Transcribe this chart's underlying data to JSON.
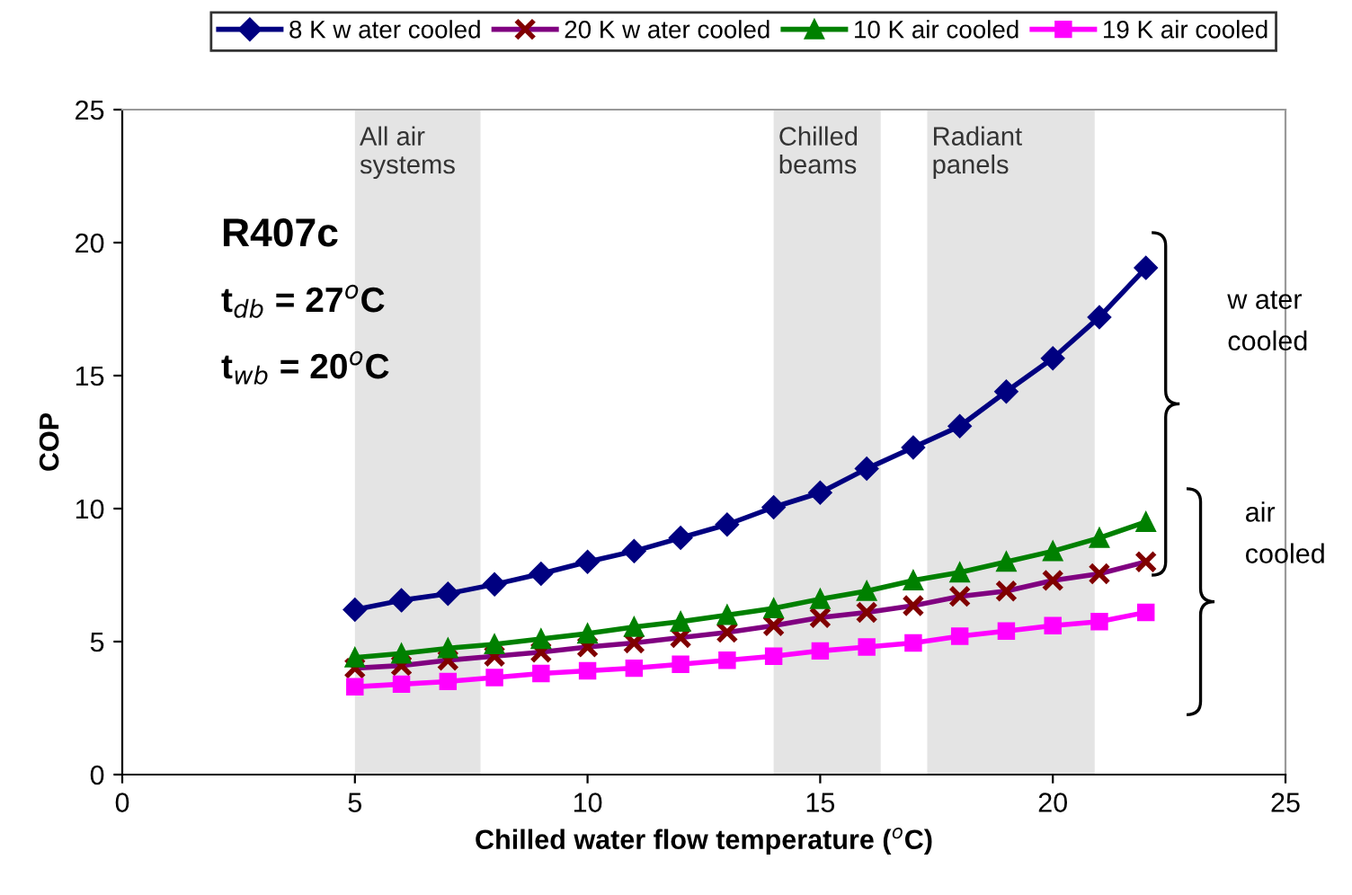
{
  "chart_data": {
    "type": "line",
    "x": [
      5,
      6,
      7,
      8,
      9,
      10,
      11,
      12,
      13,
      14,
      15,
      16,
      17,
      18,
      19,
      20,
      21,
      22
    ],
    "series": [
      {
        "name": "8 K w ater cooled",
        "color": "#000080",
        "marker": "diamond",
        "values": [
          6.2,
          6.55,
          6.8,
          7.15,
          7.55,
          8.0,
          8.4,
          8.9,
          9.4,
          10.05,
          10.6,
          11.5,
          12.3,
          13.1,
          14.4,
          15.65,
          17.2,
          19.05
        ]
      },
      {
        "name": "20 K w ater cooled",
        "color": "#800080",
        "marker": "cross",
        "values": [
          4.0,
          4.1,
          4.3,
          4.45,
          4.6,
          4.8,
          4.95,
          5.15,
          5.35,
          5.6,
          5.9,
          6.1,
          6.35,
          6.7,
          6.9,
          7.3,
          7.55,
          8.0
        ]
      },
      {
        "name": "10 K air cooled",
        "color": "#008000",
        "marker": "triangle",
        "values": [
          4.4,
          4.55,
          4.75,
          4.9,
          5.1,
          5.3,
          5.55,
          5.75,
          6.0,
          6.25,
          6.6,
          6.9,
          7.3,
          7.6,
          8.0,
          8.4,
          8.9,
          9.5
        ]
      },
      {
        "name": "19 K air cooled",
        "color": "#ff00ff",
        "marker": "square",
        "values": [
          3.3,
          3.4,
          3.5,
          3.65,
          3.8,
          3.9,
          4.0,
          4.15,
          4.3,
          4.45,
          4.65,
          4.8,
          4.95,
          5.2,
          5.4,
          5.6,
          5.75,
          6.1
        ]
      }
    ],
    "xlabel": "Chilled water flow temperature ($^{o}$C)",
    "ylabel": "COP",
    "xlim": [
      0,
      25
    ],
    "xticks": [
      0,
      5,
      10,
      15,
      20,
      25
    ],
    "ylim": [
      0,
      25
    ],
    "yticks": [
      0,
      5,
      10,
      15,
      20,
      25
    ],
    "bands": [
      {
        "axis": "x",
        "from": 5,
        "to": 7.7,
        "label": "All air\nsystems",
        "color": "#e4e4e4"
      },
      {
        "axis": "x",
        "from": 14,
        "to": 16.3,
        "label": "Chilled\nbeams",
        "color": "#e4e4e4"
      },
      {
        "axis": "x",
        "from": 17.3,
        "to": 20.9,
        "label": "Radiant\npanels",
        "color": "#e4e4e4"
      }
    ],
    "annotations": [
      "R407c",
      "t$_{db}$ = 27$^{o}$C",
      "t$_{wb}$ = 20$^{o}$C",
      "w ater\ncooled",
      "air\ncooled"
    ],
    "legend": "top",
    "grid": false,
    "line_style": "solid"
  }
}
